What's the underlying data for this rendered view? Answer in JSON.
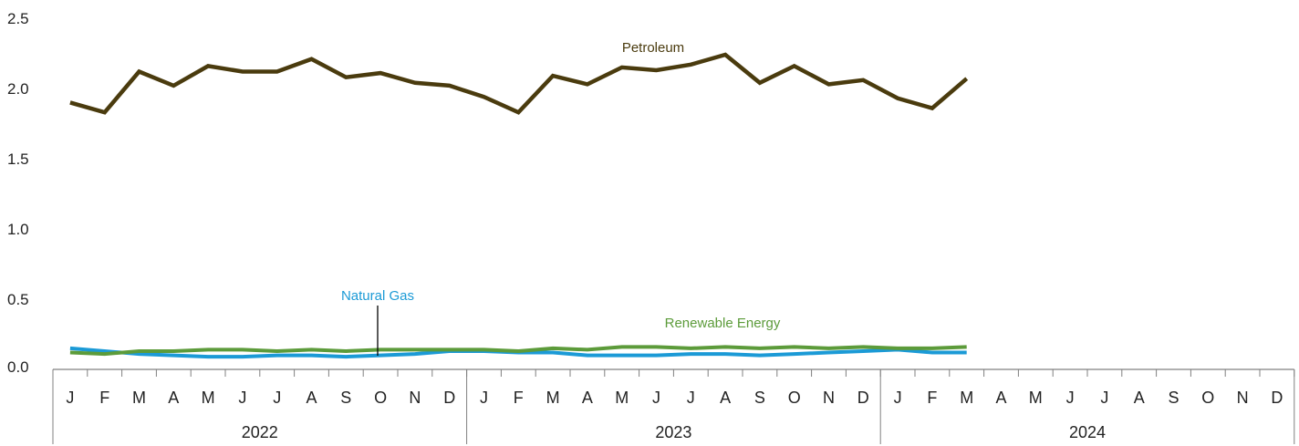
{
  "chart_data": {
    "type": "line",
    "title": "",
    "xlabel": "",
    "ylabel": "",
    "ylim": [
      0,
      2.5
    ],
    "yticks": [
      "0.0",
      "0.5",
      "1.0",
      "1.5",
      "2.0",
      "2.5"
    ],
    "grid": false,
    "month_labels": [
      "J",
      "F",
      "M",
      "A",
      "M",
      "J",
      "J",
      "A",
      "S",
      "O",
      "N",
      "D",
      "J",
      "F",
      "M",
      "A",
      "M",
      "J",
      "J",
      "A",
      "S",
      "O",
      "N",
      "D",
      "J",
      "F",
      "M",
      "A",
      "M",
      "J",
      "J",
      "A",
      "S",
      "O",
      "N",
      "D"
    ],
    "years": [
      "2022",
      "2023",
      "2024"
    ],
    "x": [
      "2022-01",
      "2022-02",
      "2022-03",
      "2022-04",
      "2022-05",
      "2022-06",
      "2022-07",
      "2022-08",
      "2022-09",
      "2022-10",
      "2022-11",
      "2022-12",
      "2023-01",
      "2023-02",
      "2023-03",
      "2023-04",
      "2023-05",
      "2023-06",
      "2023-07",
      "2023-08",
      "2023-09",
      "2023-10",
      "2023-11",
      "2023-12",
      "2024-01",
      "2024-02",
      "2024-03"
    ],
    "series": [
      {
        "name": "Petroleum",
        "color": "#4a3b0e",
        "values": [
          1.9,
          1.83,
          2.12,
          2.02,
          2.16,
          2.12,
          2.12,
          2.21,
          2.08,
          2.11,
          2.04,
          2.02,
          1.94,
          1.83,
          2.09,
          2.03,
          2.15,
          2.13,
          2.17,
          2.24,
          2.04,
          2.16,
          2.03,
          2.06,
          1.93,
          1.86,
          2.07
        ]
      },
      {
        "name": "Natural Gas",
        "color": "#1b9ad6",
        "values": [
          0.15,
          0.13,
          0.11,
          0.1,
          0.09,
          0.09,
          0.1,
          0.1,
          0.09,
          0.1,
          0.11,
          0.13,
          0.13,
          0.12,
          0.12,
          0.1,
          0.1,
          0.1,
          0.11,
          0.11,
          0.1,
          0.11,
          0.12,
          0.13,
          0.14,
          0.12,
          0.12
        ]
      },
      {
        "name": "Renewable Energy",
        "color": "#5c9b3a",
        "values": [
          0.12,
          0.11,
          0.13,
          0.13,
          0.14,
          0.14,
          0.13,
          0.14,
          0.13,
          0.14,
          0.14,
          0.14,
          0.14,
          0.13,
          0.15,
          0.14,
          0.16,
          0.16,
          0.15,
          0.16,
          0.15,
          0.16,
          0.15,
          0.16,
          0.15,
          0.15,
          0.16
        ]
      }
    ]
  }
}
